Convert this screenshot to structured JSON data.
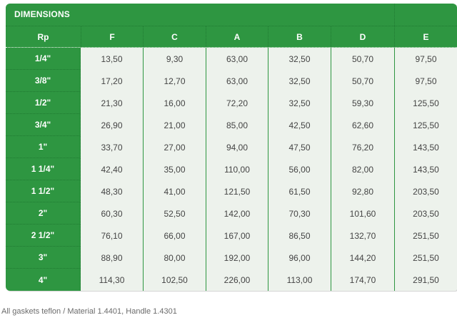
{
  "table": {
    "title": "DIMENSIONS",
    "row_header_label": "Rp",
    "columns": [
      "F",
      "C",
      "A",
      "B",
      "D",
      "E"
    ],
    "rows": [
      {
        "rp": "1/4\"",
        "values": [
          "13,50",
          "9,30",
          "63,00",
          "32,50",
          "50,70",
          "97,50"
        ]
      },
      {
        "rp": "3/8\"",
        "values": [
          "17,20",
          "12,70",
          "63,00",
          "32,50",
          "50,70",
          "97,50"
        ]
      },
      {
        "rp": "1/2\"",
        "values": [
          "21,30",
          "16,00",
          "72,20",
          "32,50",
          "59,30",
          "125,50"
        ]
      },
      {
        "rp": "3/4\"",
        "values": [
          "26,90",
          "21,00",
          "85,00",
          "42,50",
          "62,60",
          "125,50"
        ]
      },
      {
        "rp": "1\"",
        "values": [
          "33,70",
          "27,00",
          "94,00",
          "47,50",
          "76,20",
          "143,50"
        ]
      },
      {
        "rp": "1 1/4\"",
        "values": [
          "42,40",
          "35,00",
          "110,00",
          "56,00",
          "82,00",
          "143,50"
        ]
      },
      {
        "rp": "1 1/2\"",
        "values": [
          "48,30",
          "41,00",
          "121,50",
          "61,50",
          "92,80",
          "203,50"
        ]
      },
      {
        "rp": "2\"",
        "values": [
          "60,30",
          "52,50",
          "142,00",
          "70,30",
          "101,60",
          "203,50"
        ]
      },
      {
        "rp": "2 1/2\"",
        "values": [
          "76,10",
          "66,00",
          "167,00",
          "86,50",
          "132,70",
          "251,50"
        ]
      },
      {
        "rp": "3\"",
        "values": [
          "88,90",
          "80,00",
          "192,00",
          "96,00",
          "144,20",
          "251,50"
        ]
      },
      {
        "rp": "4\"",
        "values": [
          "114,30",
          "102,50",
          "226,00",
          "113,00",
          "174,70",
          "291,50"
        ]
      }
    ],
    "footnote": "All gaskets teflon / Material 1.4401, Handle 1.4301"
  },
  "colors": {
    "header_green": "#2E9641",
    "separator_dark_green": "#1F7A31",
    "cell_background": "#EDF2EC",
    "value_text": "#444444",
    "header_text": "#FFFFFF",
    "footnote_text": "#6B6B6B"
  }
}
